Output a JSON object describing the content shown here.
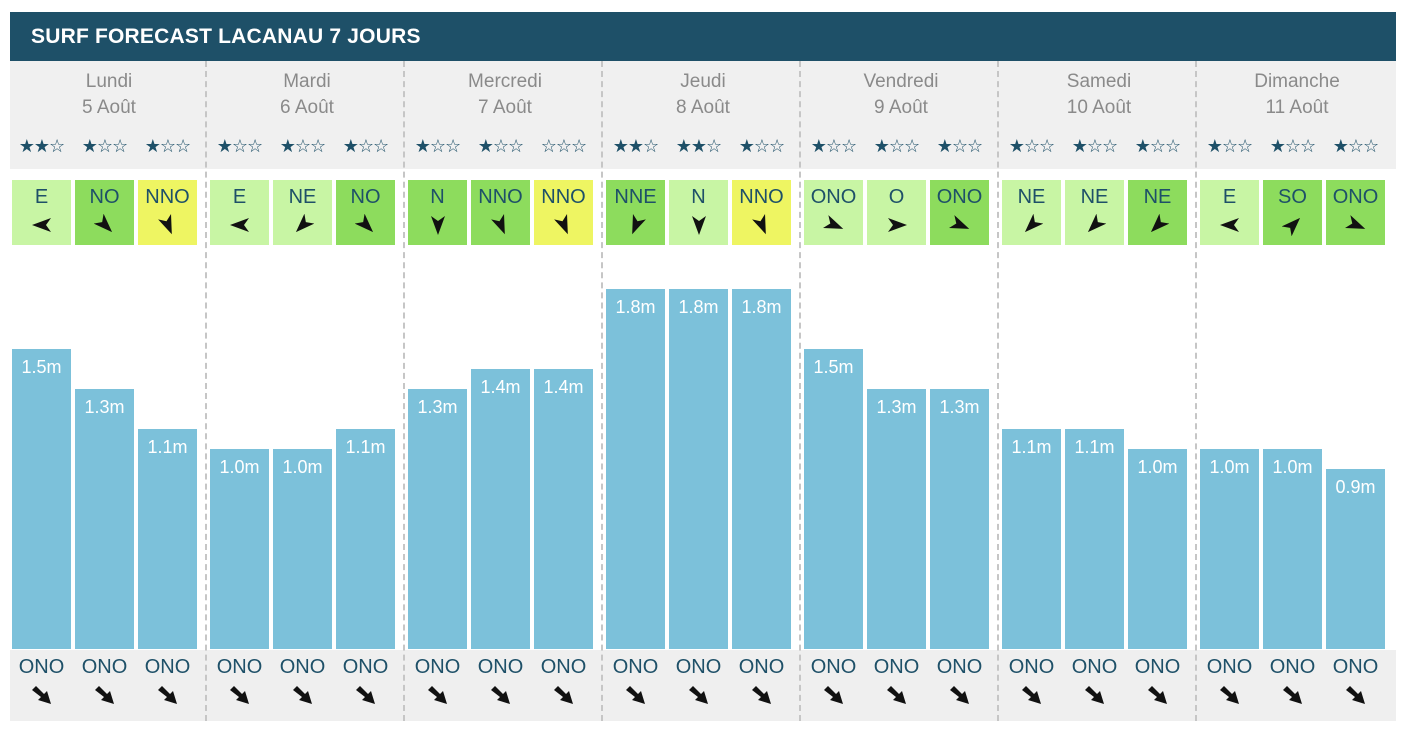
{
  "title": "SURF FORECAST LACANAU 7 JOURS",
  "days": [
    {
      "name": "Lundi",
      "date": "5 Août",
      "slots": [
        {
          "stars": "★★☆",
          "wind": "E",
          "wind_level": "light",
          "wave": "1.5m",
          "wave_height": 1.5,
          "swell": "ONO"
        },
        {
          "stars": "★☆☆",
          "wind": "NO",
          "wind_level": "mid",
          "wave": "1.3m",
          "wave_height": 1.3,
          "swell": "ONO"
        },
        {
          "stars": "★☆☆",
          "wind": "NNO",
          "wind_level": "yellow",
          "wave": "1.1m",
          "wave_height": 1.1,
          "swell": "ONO"
        }
      ]
    },
    {
      "name": "Mardi",
      "date": "6 Août",
      "slots": [
        {
          "stars": "★☆☆",
          "wind": "E",
          "wind_level": "light",
          "wave": "1.0m",
          "wave_height": 1.0,
          "swell": "ONO"
        },
        {
          "stars": "★☆☆",
          "wind": "NE",
          "wind_level": "light",
          "wave": "1.0m",
          "wave_height": 1.0,
          "swell": "ONO"
        },
        {
          "stars": "★☆☆",
          "wind": "NO",
          "wind_level": "mid",
          "wave": "1.1m",
          "wave_height": 1.1,
          "swell": "ONO"
        }
      ]
    },
    {
      "name": "Mercredi",
      "date": "7 Août",
      "slots": [
        {
          "stars": "★☆☆",
          "wind": "N",
          "wind_level": "mid",
          "wave": "1.3m",
          "wave_height": 1.3,
          "swell": "ONO"
        },
        {
          "stars": "★☆☆",
          "wind": "NNO",
          "wind_level": "mid",
          "wave": "1.4m",
          "wave_height": 1.4,
          "swell": "ONO"
        },
        {
          "stars": "☆☆☆",
          "wind": "NNO",
          "wind_level": "yellow",
          "wave": "1.4m",
          "wave_height": 1.4,
          "swell": "ONO"
        }
      ]
    },
    {
      "name": "Jeudi",
      "date": "8 Août",
      "slots": [
        {
          "stars": "★★☆",
          "wind": "NNE",
          "wind_level": "mid",
          "wave": "1.8m",
          "wave_height": 1.8,
          "swell": "ONO"
        },
        {
          "stars": "★★☆",
          "wind": "N",
          "wind_level": "light",
          "wave": "1.8m",
          "wave_height": 1.8,
          "swell": "ONO"
        },
        {
          "stars": "★☆☆",
          "wind": "NNO",
          "wind_level": "yellow",
          "wave": "1.8m",
          "wave_height": 1.8,
          "swell": "ONO"
        }
      ]
    },
    {
      "name": "Vendredi",
      "date": "9 Août",
      "slots": [
        {
          "stars": "★☆☆",
          "wind": "ONO",
          "wind_level": "light",
          "wave": "1.5m",
          "wave_height": 1.5,
          "swell": "ONO"
        },
        {
          "stars": "★☆☆",
          "wind": "O",
          "wind_level": "light",
          "wave": "1.3m",
          "wave_height": 1.3,
          "swell": "ONO"
        },
        {
          "stars": "★☆☆",
          "wind": "ONO",
          "wind_level": "mid",
          "wave": "1.3m",
          "wave_height": 1.3,
          "swell": "ONO"
        }
      ]
    },
    {
      "name": "Samedi",
      "date": "10 Août",
      "slots": [
        {
          "stars": "★☆☆",
          "wind": "NE",
          "wind_level": "light",
          "wave": "1.1m",
          "wave_height": 1.1,
          "swell": "ONO"
        },
        {
          "stars": "★☆☆",
          "wind": "NE",
          "wind_level": "light",
          "wave": "1.1m",
          "wave_height": 1.1,
          "swell": "ONO"
        },
        {
          "stars": "★☆☆",
          "wind": "NE",
          "wind_level": "mid",
          "wave": "1.0m",
          "wave_height": 1.0,
          "swell": "ONO"
        }
      ]
    },
    {
      "name": "Dimanche",
      "date": "11 Août",
      "slots": [
        {
          "stars": "★☆☆",
          "wind": "E",
          "wind_level": "light",
          "wave": "1.0m",
          "wave_height": 1.0,
          "swell": "ONO"
        },
        {
          "stars": "★☆☆",
          "wind": "SO",
          "wind_level": "mid",
          "wave": "1.0m",
          "wave_height": 1.0,
          "swell": "ONO"
        },
        {
          "stars": "★☆☆",
          "wind": "ONO",
          "wind_level": "mid",
          "wave": "0.9m",
          "wave_height": 0.9,
          "swell": "ONO"
        }
      ]
    }
  ],
  "wind_arrow_icon": "wind-direction-arrow-icon",
  "swell_arrow_icon": "swell-direction-arrow-icon",
  "colors": {
    "header": "#1e5068",
    "wave_bar": "#7cc1da",
    "wind_light": "#c8f5a4",
    "wind_mid": "#8ddc5d",
    "wind_yellow": "#eef562"
  }
}
